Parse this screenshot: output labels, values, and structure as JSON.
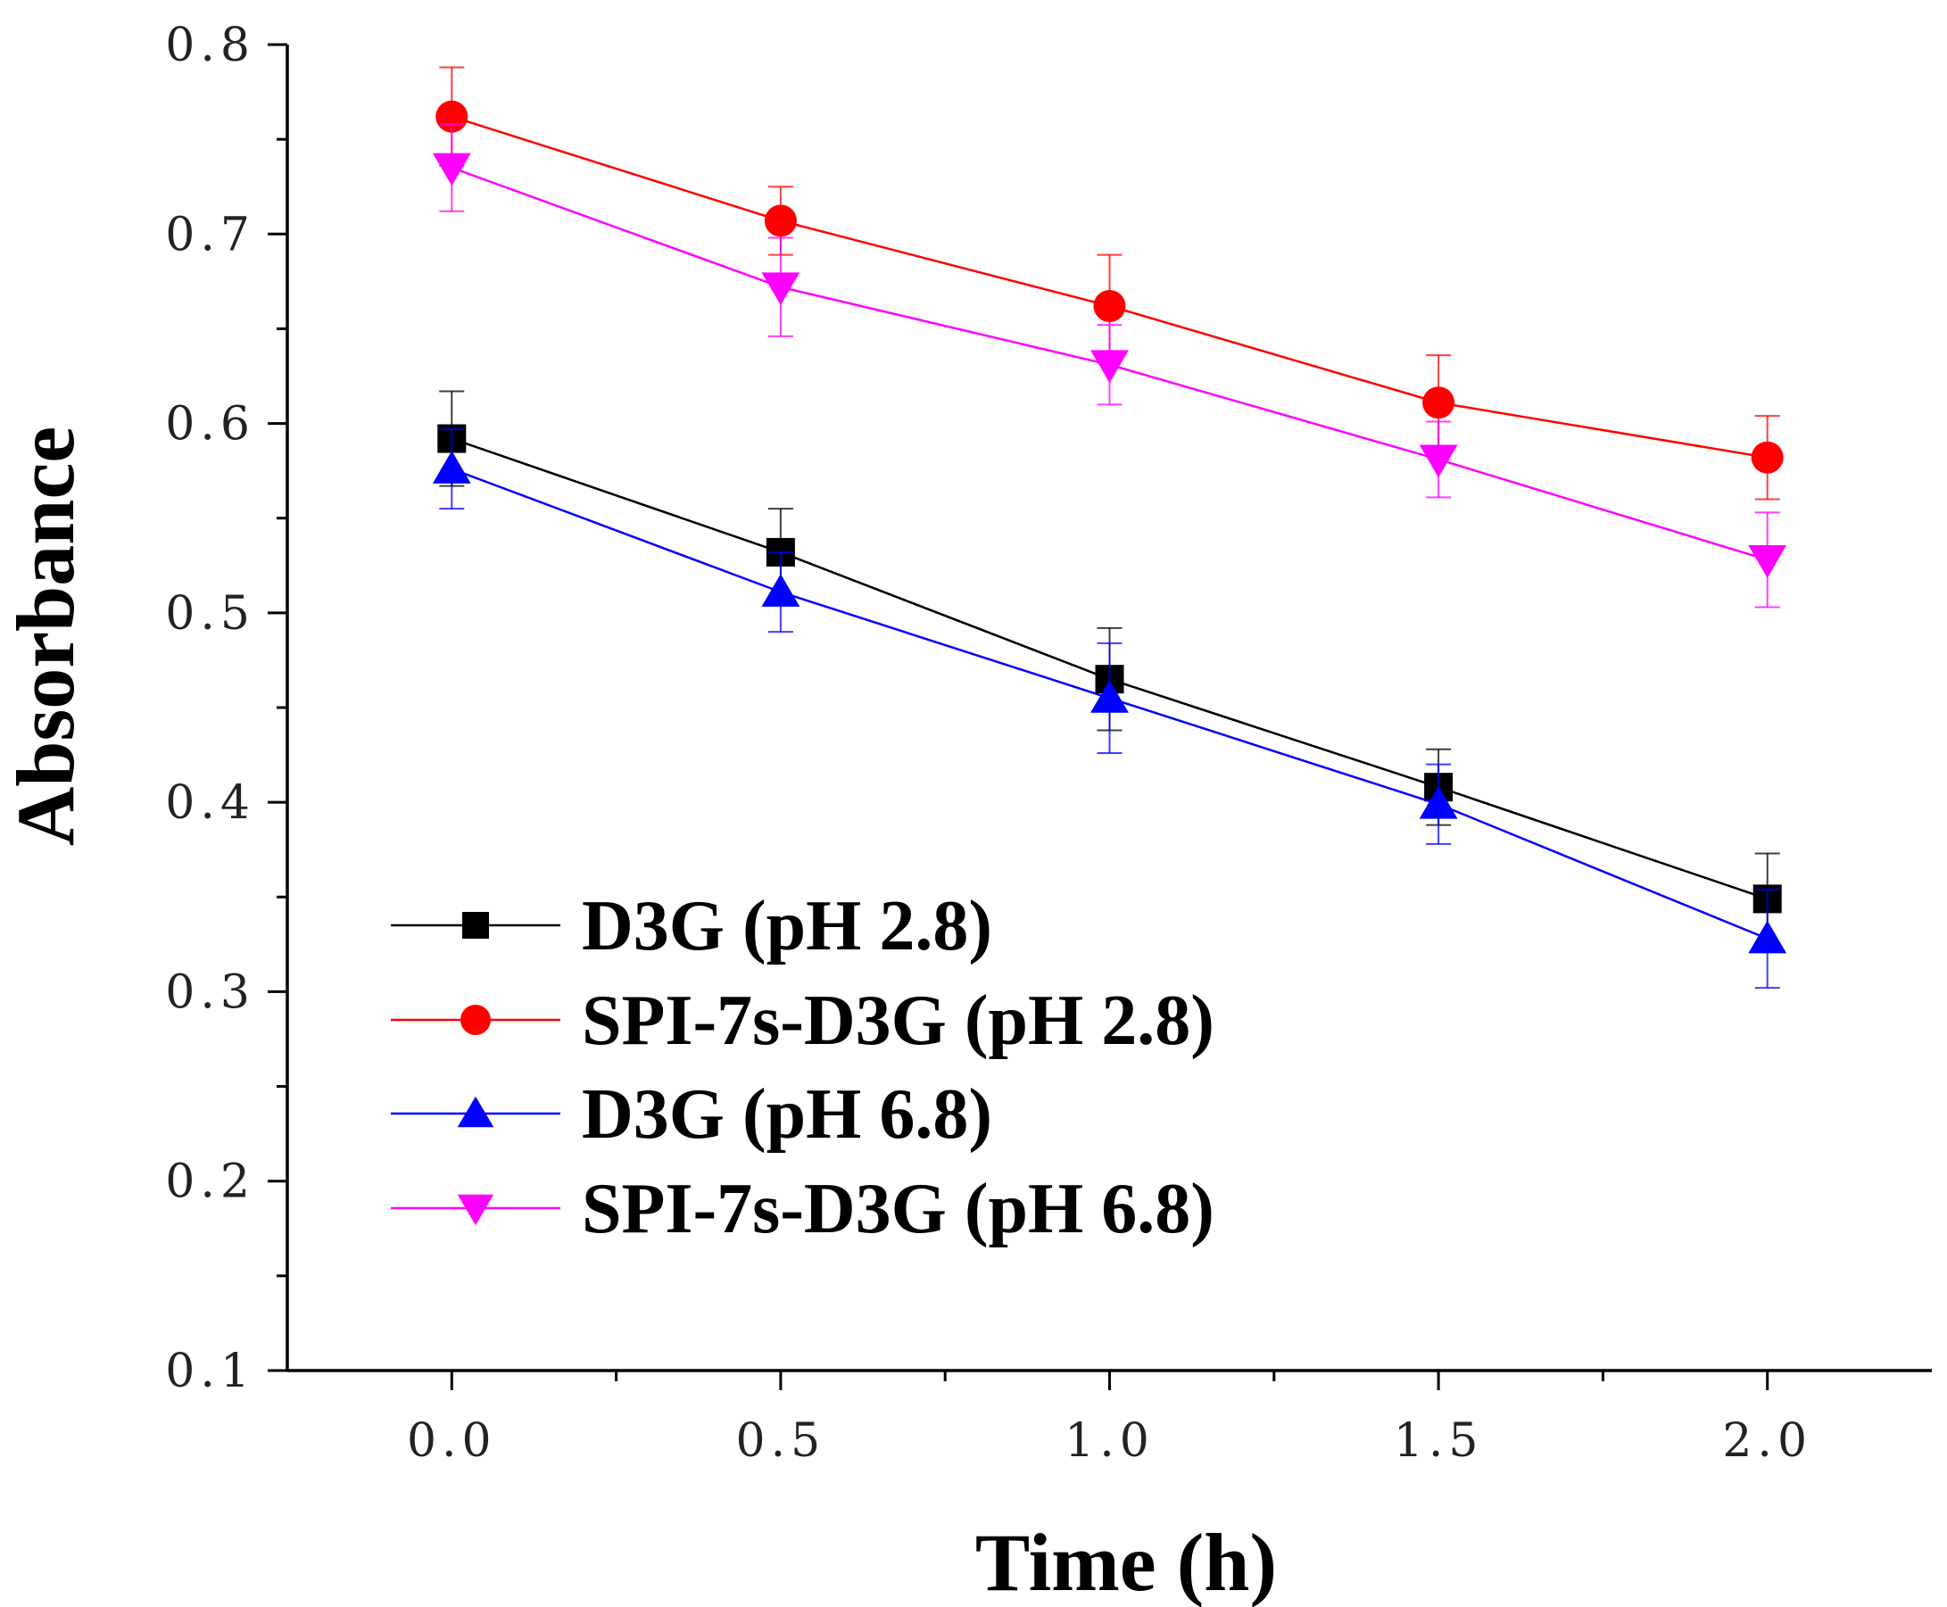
{
  "chart_data": {
    "type": "line",
    "title": "",
    "xlabel": "Time (h)",
    "ylabel": "Absorbance",
    "x": [
      0.0,
      0.5,
      1.0,
      1.5,
      2.0
    ],
    "xlim": [
      -0.25,
      2.25
    ],
    "ylim": [
      0.1,
      0.8
    ],
    "x_ticks": [
      0.0,
      0.5,
      1.0,
      1.5,
      2.0
    ],
    "x_tick_labels": [
      "0.0",
      "0.5",
      "1.0",
      "1.5",
      "2.0"
    ],
    "y_ticks": [
      0.1,
      0.2,
      0.3,
      0.4,
      0.5,
      0.6,
      0.7,
      0.8
    ],
    "y_tick_labels": [
      "0.1",
      "0.2",
      "0.3",
      "0.4",
      "0.5",
      "0.6",
      "0.7",
      "0.8"
    ],
    "grid": false,
    "legend_position": "lower-left",
    "series": [
      {
        "name": "D3G (pH 2.8)",
        "color": "#000000",
        "marker": "square",
        "values": [
          0.592,
          0.532,
          0.465,
          0.408,
          0.349
        ],
        "errors": [
          0.025,
          0.023,
          0.027,
          0.02,
          0.024
        ]
      },
      {
        "name": "SPI-7s-D3G (pH 2.8)",
        "color": "#ff0000",
        "marker": "circle",
        "values": [
          0.762,
          0.707,
          0.662,
          0.611,
          0.582
        ],
        "errors": [
          0.026,
          0.018,
          0.027,
          0.025,
          0.022
        ]
      },
      {
        "name": "D3G (pH 6.8)",
        "color": "#0000ff",
        "marker": "triangle-up",
        "values": [
          0.576,
          0.511,
          0.455,
          0.399,
          0.328
        ],
        "errors": [
          0.021,
          0.021,
          0.029,
          0.021,
          0.026
        ]
      },
      {
        "name": "SPI-7s-D3G (pH 6.8)",
        "color": "#ff00ff",
        "marker": "triangle-down",
        "values": [
          0.735,
          0.672,
          0.631,
          0.581,
          0.528
        ],
        "errors": [
          0.023,
          0.026,
          0.021,
          0.02,
          0.025
        ]
      }
    ]
  }
}
